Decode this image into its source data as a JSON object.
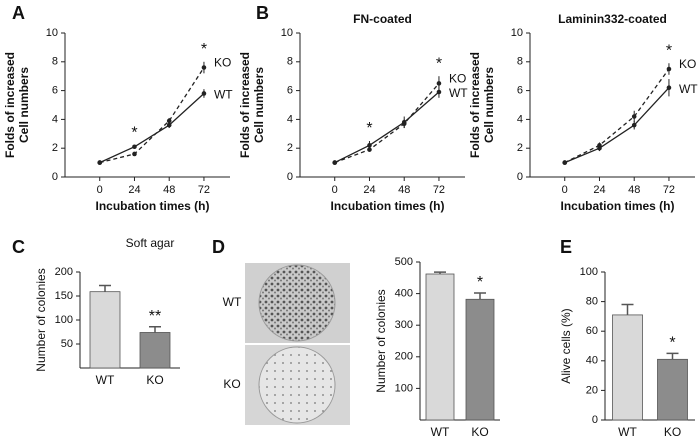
{
  "chart_data": [
    {
      "type": "line",
      "panel_label": "A",
      "xlabel": "Incubation times (h)",
      "ylabel": [
        "Folds of increased",
        "Cell numbers"
      ],
      "x": [
        0,
        24,
        48,
        72
      ],
      "xlim": [
        -24,
        90
      ],
      "xticks": [
        0,
        24,
        48,
        72
      ],
      "ylim": [
        0,
        10
      ],
      "yticks": [
        0,
        2,
        4,
        6,
        8,
        10
      ],
      "series": [
        {
          "name": "WT",
          "color": "#222222",
          "dashed": false,
          "values": [
            1,
            2.1,
            3.6,
            5.8
          ],
          "errors": [
            0.1,
            0.1,
            0.2,
            0.3
          ]
        },
        {
          "name": "KO",
          "color": "#222222",
          "dashed": true,
          "values": [
            1,
            1.6,
            3.9,
            7.6
          ],
          "errors": [
            0.1,
            0.1,
            0.2,
            0.4
          ]
        }
      ],
      "annotations": [
        {
          "x": 24,
          "text": "*"
        },
        {
          "x": 72,
          "text": "*"
        }
      ]
    },
    {
      "type": "line",
      "panel_label": "B",
      "title": "FN-coated",
      "xlabel": "Incubation times (h)",
      "ylabel": [
        "Folds of increased",
        "Cell numbers"
      ],
      "x": [
        0,
        24,
        48,
        72
      ],
      "xlim": [
        -24,
        90
      ],
      "xticks": [
        0,
        24,
        48,
        72
      ],
      "ylim": [
        0,
        10
      ],
      "yticks": [
        0,
        2,
        4,
        6,
        8,
        10
      ],
      "series": [
        {
          "name": "WT",
          "color": "#222222",
          "dashed": false,
          "values": [
            1,
            2.2,
            3.8,
            5.9
          ],
          "errors": [
            0.1,
            0.3,
            0.4,
            0.4
          ]
        },
        {
          "name": "KO",
          "color": "#222222",
          "dashed": true,
          "values": [
            1,
            1.9,
            3.7,
            6.5
          ],
          "errors": [
            0.1,
            0.1,
            0.3,
            0.5
          ]
        }
      ],
      "annotations": [
        {
          "x": 24,
          "text": "*"
        },
        {
          "x": 72,
          "text": "*"
        }
      ]
    },
    {
      "type": "line",
      "title": "Laminin332-coated",
      "xlabel": "Incubation times (h)",
      "ylabel": [
        "Folds of increased",
        "Cell numbers"
      ],
      "x": [
        0,
        24,
        48,
        72
      ],
      "xlim": [
        -24,
        90
      ],
      "xticks": [
        0,
        24,
        48,
        72
      ],
      "ylim": [
        0,
        10
      ],
      "yticks": [
        0,
        2,
        4,
        6,
        8,
        10
      ],
      "series": [
        {
          "name": "WT",
          "color": "#222222",
          "dashed": false,
          "values": [
            1,
            2.0,
            3.6,
            6.2
          ],
          "errors": [
            0.1,
            0.2,
            0.3,
            0.6
          ]
        },
        {
          "name": "KO",
          "color": "#222222",
          "dashed": true,
          "values": [
            1,
            2.2,
            4.2,
            7.5
          ],
          "errors": [
            0.1,
            0.2,
            0.4,
            0.4
          ]
        }
      ],
      "annotations": [
        {
          "x": 72,
          "text": "*"
        }
      ]
    },
    {
      "type": "bar",
      "panel_label": "C",
      "title": "Soft  agar",
      "ylabel": [
        "Number of colonies"
      ],
      "categories": [
        "WT",
        "KO"
      ],
      "values": [
        159,
        74
      ],
      "errors": [
        13,
        12
      ],
      "colors": [
        "#d9d9d9",
        "#8c8c8c"
      ],
      "ylim": [
        0,
        200
      ],
      "yticks": [
        50,
        100,
        150,
        200
      ],
      "annotations": [
        {
          "category": "KO",
          "text": "**"
        }
      ]
    },
    {
      "type": "bar",
      "panel_label": "D",
      "ylabel": [
        "Number of colonies"
      ],
      "image_labels": [
        "WT",
        "KO"
      ],
      "categories": [
        "WT",
        "KO"
      ],
      "values": [
        462,
        382
      ],
      "errors": [
        6,
        20
      ],
      "colors": [
        "#d9d9d9",
        "#8c8c8c"
      ],
      "ylim": [
        0,
        500
      ],
      "yticks": [
        100,
        200,
        300,
        400,
        500
      ],
      "annotations": [
        {
          "category": "KO",
          "text": "*"
        }
      ]
    },
    {
      "type": "bar",
      "panel_label": "E",
      "ylabel": [
        "Alive cells (%)"
      ],
      "categories": [
        "WT",
        "KO"
      ],
      "values": [
        71,
        41
      ],
      "errors": [
        7,
        4
      ],
      "colors": [
        "#d9d9d9",
        "#8c8c8c"
      ],
      "ylim": [
        0,
        100
      ],
      "yticks": [
        0,
        20,
        40,
        60,
        80,
        100
      ],
      "annotations": [
        {
          "category": "KO",
          "text": "*"
        }
      ]
    }
  ]
}
